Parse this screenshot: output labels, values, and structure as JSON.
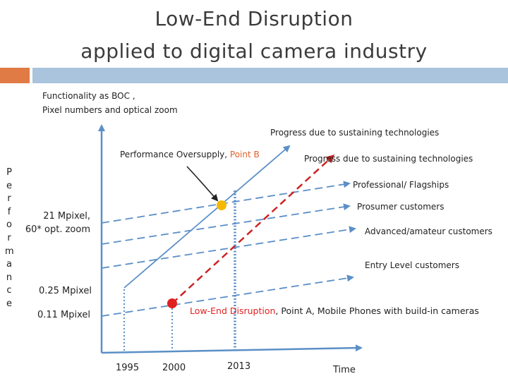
{
  "title_line1": "Low-End Disruption",
  "title_line2": "applied to digital camera industry",
  "y_axis_title_line1": "Functionality as BOC ,",
  "y_axis_title_line2": "Pixel numbers and optical zoom",
  "performance_letters": [
    "P",
    "e",
    "r",
    "f",
    "o",
    "r",
    "m",
    "a",
    "n",
    "c",
    "e"
  ],
  "y_labels": {
    "top_line1": "21 Mpixel,",
    "top_line2": "60* opt. zoom",
    "mid": "0.25 Mpixel",
    "low": "0.11 Mpixel"
  },
  "x_labels": {
    "y1995": "1995",
    "y2000": "2000",
    "y2013": "2013",
    "axis": "Time"
  },
  "annotations": {
    "sustaining_solid": "Progress due to sustaining technologies",
    "sustaining_dashed": "Progress due to sustaining technologies",
    "point_b_prefix": "Performance Oversupply, ",
    "point_b_colored": "Point B",
    "point_a_colored": "Low-End Disruption",
    "point_a_rest": ", Point A, Mobile Phones with build-in cameras"
  },
  "segments": {
    "professional": "Professional/ Flagships",
    "prosumer": "Prosumer customers",
    "advanced": "Advanced/amateur customers",
    "entry": "Entry Level customers"
  },
  "colors": {
    "axis_blue": "#5b8fc7",
    "point_b": "#f5b800",
    "point_a": "#e02020",
    "disruption_red": "#cc2222",
    "accent_orange": "#e07b45",
    "rule_blue": "#a9c4dc"
  }
}
